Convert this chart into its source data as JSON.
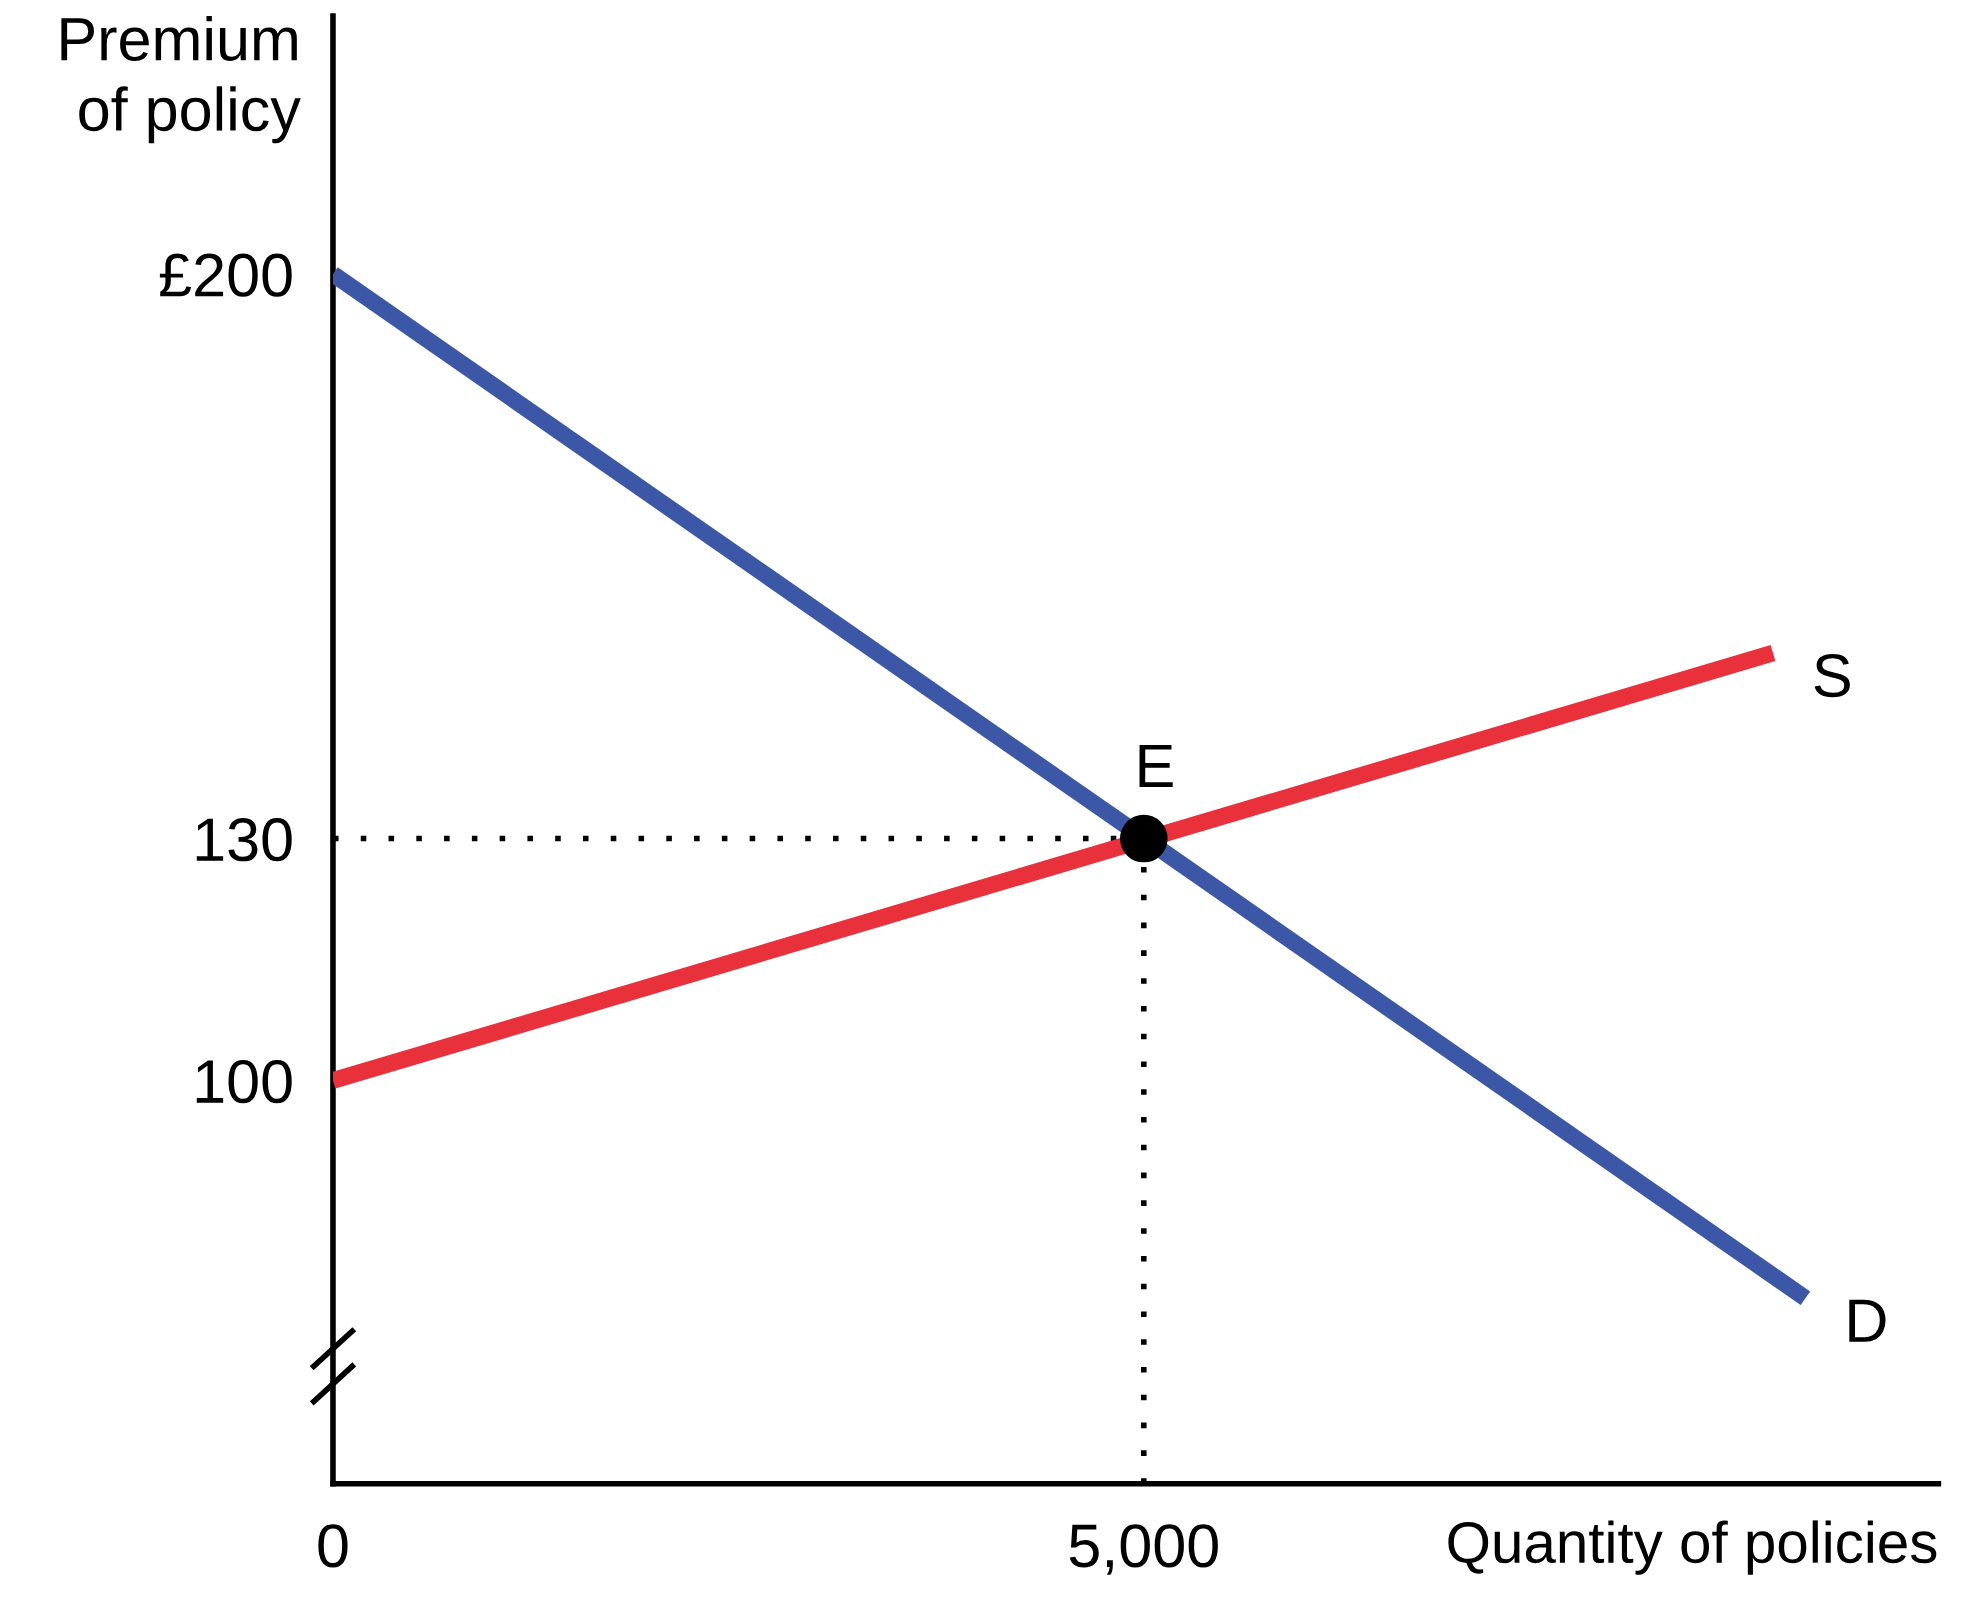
{
  "chart_data": {
    "type": "line",
    "ylabel": "Premium\nof policy",
    "xlabel": "Quantity of policies",
    "series": [
      {
        "name": "D",
        "color": "#3b57a6",
        "x": [
          0,
          9080
        ],
        "values": [
          200,
          73
        ]
      },
      {
        "name": "S",
        "color": "#e9313c",
        "x": [
          0,
          8880
        ],
        "values": [
          100,
          153
        ]
      },
      {
        "type": "scatter",
        "color": "#000000",
        "marker": "circle",
        "x": [
          5000
        ],
        "values": [
          130
        ]
      }
    ],
    "xlim": [
      0,
      9900
    ],
    "ylim": [
      50,
      232
    ],
    "xticks": [
      0,
      {
        "value": 5000,
        "label": "5,000"
      }
    ],
    "yticks": [
      100,
      130,
      {
        "value": 200,
        "label": "£200"
      }
    ],
    "ref_lines": [
      {
        "axis": "x",
        "value": 5000,
        "color": "#000000",
        "line_style": "dotted"
      },
      {
        "axis": "y",
        "value": 130,
        "color": "#000000",
        "line_style": "dotted"
      }
    ],
    "annotations": [
      {
        "text": "E",
        "x": 5000,
        "y": 130
      }
    ],
    "grid": false
  }
}
